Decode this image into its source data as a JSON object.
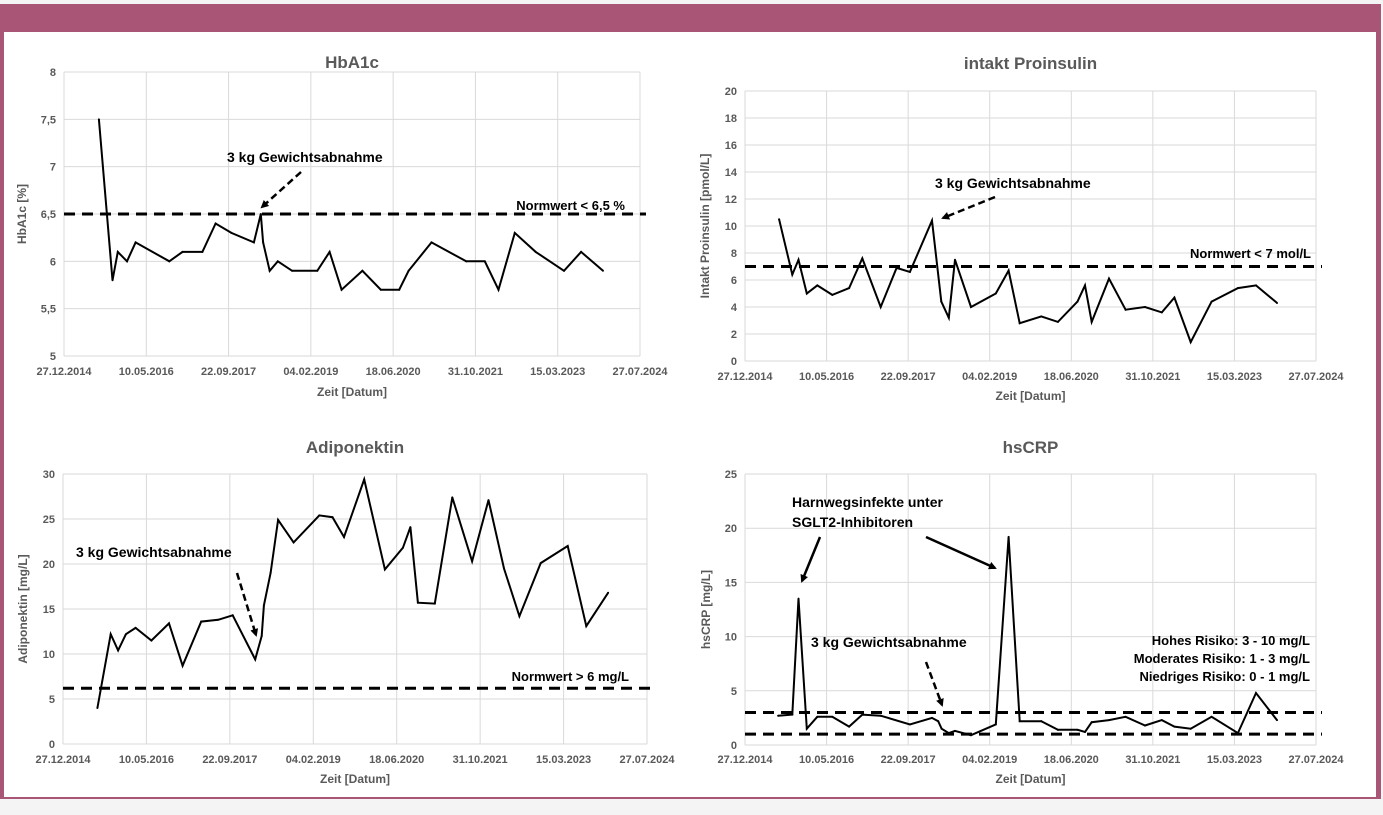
{
  "frame_color": "#a85576",
  "chart_data": [
    {
      "type": "line",
      "title": "HbA1c",
      "xlabel": "Zeit [Datum]",
      "ylabel": "HbA1c  [%]",
      "xlim": [
        "2014-12-27",
        "2024-07-27"
      ],
      "xtick_labels": [
        "27.12.2014",
        "10.05.2016",
        "22.09.2017",
        "04.02.2019",
        "18.06.2020",
        "31.10.2021",
        "15.03.2023",
        "27.07.2024"
      ],
      "ylim": [
        5,
        8
      ],
      "yticks": [
        5,
        5.5,
        6,
        6.5,
        7,
        7.5,
        8
      ],
      "ytick_labels": [
        "5",
        "5,5",
        "6",
        "6,5",
        "7",
        "7,5",
        "8"
      ],
      "grid": true,
      "series": [
        {
          "color": "#000000",
          "x": [
            "2015-07-27",
            "2015-10-18",
            "2015-11-19",
            "2016-01-14",
            "2016-03-06",
            "2016-09-27",
            "2016-12-16",
            "2017-04-16",
            "2017-07-05",
            "2017-10-09",
            "2018-02-23",
            "2018-04-06",
            "2018-04-20",
            "2018-05-30",
            "2018-07-18",
            "2018-10-13",
            "2019-03-15",
            "2019-05-29",
            "2019-08-10",
            "2019-12-14",
            "2020-04-04",
            "2020-07-25",
            "2020-09-20",
            "2021-02-06",
            "2021-09-05",
            "2021-12-27",
            "2022-03-20",
            "2022-06-27",
            "2022-11-01",
            "2023-04-22",
            "2023-08-04",
            "2023-12-15"
          ],
          "y": [
            7.5,
            5.8,
            6.1,
            6.0,
            6.2,
            6.0,
            6.1,
            6.1,
            6.4,
            6.3,
            6.2,
            6.5,
            6.2,
            5.9,
            6.0,
            5.9,
            5.9,
            6.1,
            5.7,
            5.9,
            5.7,
            5.7,
            5.9,
            6.2,
            6.0,
            6.0,
            5.7,
            6.3,
            6.1,
            5.9,
            6.1,
            5.9
          ]
        }
      ],
      "reference_lines": [
        {
          "y": 6.5,
          "label": "Normwert < 6,5 %"
        }
      ],
      "annotations": [
        {
          "text": "3 kg Gewichtsabnahme",
          "arrow": "dashed"
        }
      ]
    },
    {
      "type": "line",
      "title": "intakt Proinsulin",
      "xlabel": "Zeit [Datum]",
      "ylabel": "Intakt Proinsulin  [pmol/L]",
      "xlim": [
        "2014-12-27",
        "2024-07-27"
      ],
      "xtick_labels": [
        "27.12.2014",
        "10.05.2016",
        "22.09.2017",
        "04.02.2019",
        "18.06.2020",
        "31.10.2021",
        "15.03.2023",
        "27.07.2024"
      ],
      "ylim": [
        0,
        20
      ],
      "yticks": [
        0,
        2,
        4,
        6,
        8,
        10,
        12,
        14,
        16,
        18,
        20
      ],
      "ytick_labels": [
        "0",
        "2",
        "4",
        "6",
        "8",
        "10",
        "12",
        "14",
        "16",
        "18",
        "20"
      ],
      "grid": true,
      "series": [
        {
          "color": "#000000",
          "x": [
            "2015-07-24",
            "2015-10-13",
            "2015-11-20",
            "2016-01-10",
            "2016-03-14",
            "2016-06-14",
            "2016-09-25",
            "2016-12-15",
            "2017-04-07",
            "2017-07-13",
            "2017-10-03",
            "2018-02-15",
            "2018-04-13",
            "2018-05-29",
            "2018-07-06",
            "2018-10-12",
            "2019-03-13",
            "2019-05-31",
            "2019-08-07",
            "2019-12-17",
            "2020-03-28",
            "2020-07-26",
            "2020-09-10",
            "2020-10-21",
            "2021-02-04",
            "2021-05-17",
            "2021-09-13",
            "2021-12-25",
            "2022-03-12",
            "2022-06-20",
            "2022-10-26",
            "2023-04-05",
            "2023-07-25",
            "2023-12-01"
          ],
          "y": [
            10.5,
            6.4,
            7.5,
            5.0,
            5.6,
            4.9,
            5.4,
            7.6,
            4.0,
            6.9,
            6.6,
            10.4,
            4.4,
            3.2,
            7.5,
            4.0,
            5.0,
            6.7,
            2.8,
            3.3,
            2.9,
            4.4,
            5.6,
            2.9,
            6.1,
            3.8,
            4.0,
            3.6,
            4.7,
            1.4,
            4.4,
            5.4,
            5.6,
            4.3
          ]
        }
      ],
      "reference_lines": [
        {
          "y": 7,
          "label": "Normwert < 7 mol/L"
        }
      ],
      "annotations": [
        {
          "text": "3 kg Gewichtsabnahme",
          "arrow": "dashed"
        }
      ]
    },
    {
      "type": "line",
      "title": "Adiponektin",
      "xlabel": "Zeit [Datum]",
      "ylabel": "Adiponektin  [mg/L]",
      "xlim": [
        "2014-12-27",
        "2024-07-27"
      ],
      "xtick_labels": [
        "27.12.2014",
        "10.05.2016",
        "22.09.2017",
        "04.02.2019",
        "18.06.2020",
        "31.10.2021",
        "15.03.2023",
        "27.07.2024"
      ],
      "ylim": [
        0,
        30
      ],
      "yticks": [
        0,
        5,
        10,
        15,
        20,
        25,
        30
      ],
      "ytick_labels": [
        "0",
        "5",
        "10",
        "15",
        "20",
        "25",
        "30"
      ],
      "grid": true,
      "series": [
        {
          "color": "#000000",
          "x": [
            "2015-07-21",
            "2015-10-09",
            "2015-11-22",
            "2016-01-08",
            "2016-03-06",
            "2016-06-09",
            "2016-09-22",
            "2016-12-13",
            "2017-04-03",
            "2017-07-14",
            "2017-10-09",
            "2018-02-21",
            "2018-04-01",
            "2018-04-14",
            "2018-05-24",
            "2018-07-08",
            "2018-10-09",
            "2019-03-12",
            "2019-05-30",
            "2019-08-07",
            "2019-12-06",
            "2020-04-08",
            "2020-07-25",
            "2020-09-08",
            "2020-10-23",
            "2021-02-01",
            "2021-05-17",
            "2021-09-13",
            "2021-12-20",
            "2022-03-23",
            "2022-06-23",
            "2022-10-29",
            "2023-04-09",
            "2023-07-29",
            "2023-12-07"
          ],
          "y": [
            4.0,
            12.2,
            10.4,
            12.2,
            12.9,
            11.5,
            13.4,
            8.7,
            13.6,
            13.8,
            14.3,
            9.4,
            12.0,
            15.4,
            19.0,
            24.9,
            22.4,
            25.4,
            25.2,
            23.0,
            29.4,
            19.4,
            21.8,
            24.1,
            15.7,
            15.6,
            27.4,
            20.3,
            27.1,
            19.5,
            14.2,
            20.1,
            22.0,
            13.1,
            16.8
          ]
        }
      ],
      "reference_lines": [
        {
          "y": 6.2,
          "label": "Normwert > 6 mg/L"
        }
      ],
      "annotations": [
        {
          "text": "3 kg Gewichtsabnahme",
          "arrow": "dashed"
        }
      ]
    },
    {
      "type": "line",
      "title": "hsCRP",
      "xlabel": "Zeit [Datum]",
      "ylabel": "hsCRP  [mg/L]",
      "xlim": [
        "2014-12-27",
        "2024-07-27"
      ],
      "xtick_labels": [
        "27.12.2014",
        "10.05.2016",
        "22.09.2017",
        "04.02.2019",
        "18.06.2020",
        "31.10.2021",
        "15.03.2023",
        "27.07.2024"
      ],
      "ylim": [
        0,
        25
      ],
      "yticks": [
        0,
        5,
        10,
        15,
        20,
        25
      ],
      "ytick_labels": [
        "0",
        "5",
        "10",
        "15",
        "20",
        "25"
      ],
      "grid": true,
      "series": [
        {
          "color": "#000000",
          "x": [
            "2015-07-18",
            "2015-10-13",
            "2015-11-20",
            "2016-01-10",
            "2016-03-14",
            "2016-06-14",
            "2016-09-25",
            "2016-12-15",
            "2017-04-07",
            "2017-10-03",
            "2018-02-15",
            "2018-03-25",
            "2018-04-15",
            "2018-05-29",
            "2018-07-06",
            "2018-10-12",
            "2019-03-13",
            "2019-05-31",
            "2019-08-07",
            "2019-12-17",
            "2020-03-28",
            "2020-07-26",
            "2020-09-10",
            "2020-10-21",
            "2021-02-04",
            "2021-05-17",
            "2021-09-13",
            "2021-12-25",
            "2022-03-12",
            "2022-06-20",
            "2022-10-26",
            "2023-04-05",
            "2023-07-25",
            "2023-12-01"
          ],
          "y": [
            2.7,
            2.8,
            13.5,
            1.5,
            2.6,
            2.6,
            1.7,
            2.8,
            2.7,
            1.9,
            2.5,
            2.2,
            1.5,
            1.1,
            1.3,
            0.9,
            1.9,
            19.2,
            2.2,
            2.2,
            1.4,
            1.4,
            1.2,
            2.1,
            2.3,
            2.6,
            1.8,
            2.3,
            1.7,
            1.5,
            2.6,
            1.1,
            4.8,
            2.3
          ]
        }
      ],
      "reference_lines": [
        {
          "y": 3,
          "label": ""
        },
        {
          "y": 1,
          "label": ""
        }
      ],
      "annotations": [
        {
          "text": "Harnwegsinfekte unter",
          "arrow": "solid"
        },
        {
          "text": "SGLT2-Inhibitoren",
          "arrow": "solid"
        },
        {
          "text": "3 kg Gewichtsabnahme",
          "arrow": "dashed"
        },
        {
          "text": "Hohes Risiko: 3 - 10 mg/L"
        },
        {
          "text": "Moderates Risiko: 1 - 3 mg/L"
        },
        {
          "text": "Niedriges Risiko: 0 - 1 mg/L"
        }
      ]
    }
  ]
}
